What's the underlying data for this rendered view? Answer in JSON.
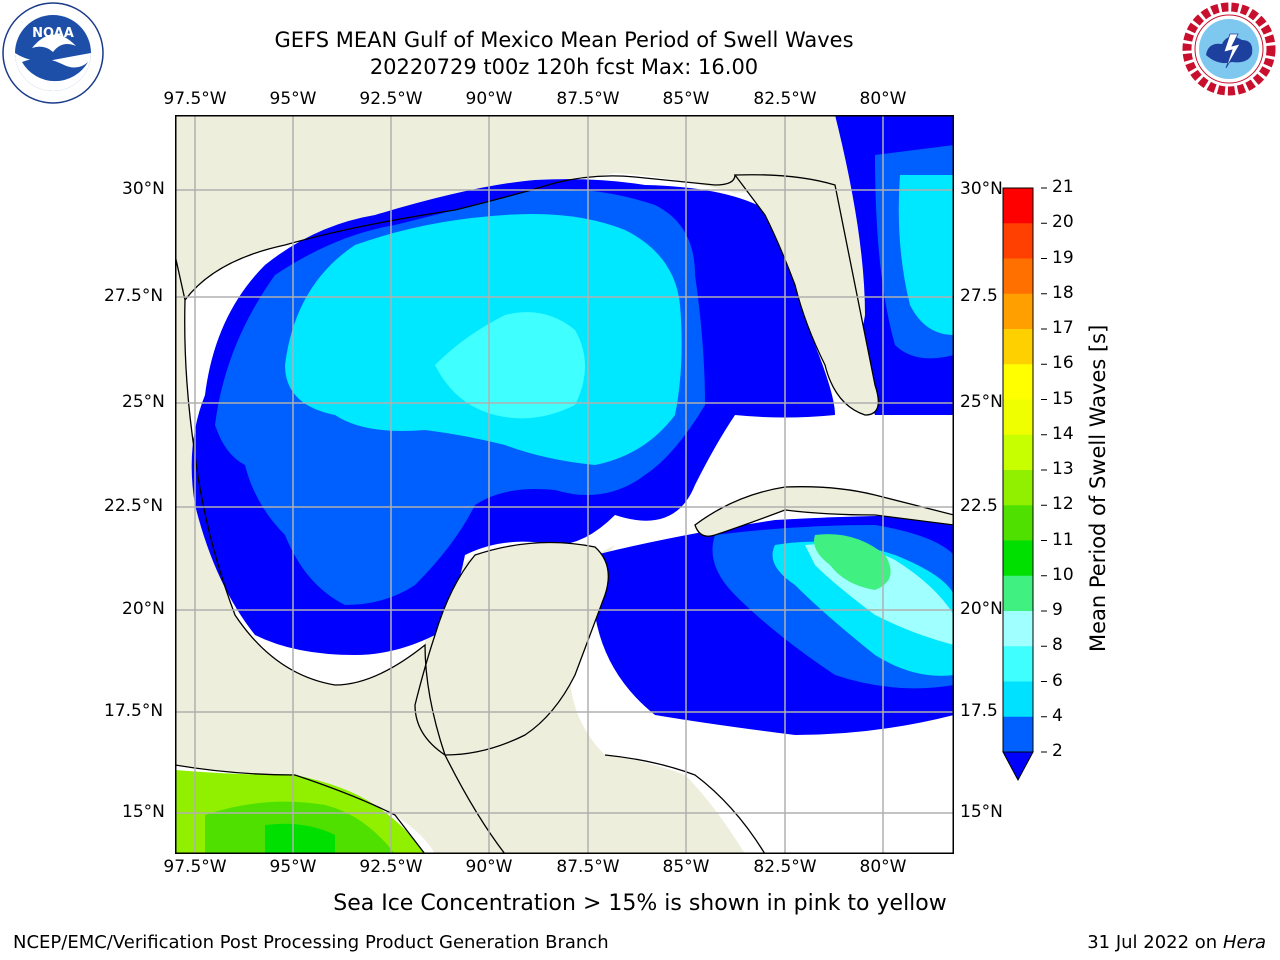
{
  "title": {
    "line1": "GEFS MEAN Gulf of Mexico Mean Period of Swell Waves",
    "line2": "20220729 t00z 120h fcst   Max: 16.00"
  },
  "logos": {
    "left": {
      "name": "noaa-logo",
      "text": "NOAA",
      "ring_text": "NATIONAL OCEANIC AND ATMOSPHERIC ADMINISTRATION · U.S. DEPARTMENT OF COMMERCE"
    },
    "right": {
      "name": "nws-logo",
      "ring_text": "NATIONAL WEATHER SERVICE"
    }
  },
  "map": {
    "lon_labels": [
      "97.5°W",
      "95°W",
      "92.5°W",
      "90°W",
      "87.5°W",
      "85°W",
      "82.5°W",
      "80°W"
    ],
    "lat_labels_left": [
      "30°N",
      "27.5°N",
      "25°N",
      "22.5°N",
      "20°N",
      "17.5°N",
      "15°N"
    ],
    "lat_labels_right": [
      "30°N",
      "27.5",
      "25°N",
      "22.5",
      "20°N",
      "17.5",
      "15°N"
    ],
    "colors": {
      "land": "#eeeedd",
      "grid": "#b0b0b0",
      "coast": "#000000"
    }
  },
  "colorbar": {
    "label": "Mean Period of Swell Waves [s]",
    "ticks": [
      "2",
      "4",
      "6",
      "8",
      "9",
      "10",
      "11",
      "12",
      "13",
      "14",
      "15",
      "16",
      "17",
      "18",
      "19",
      "20",
      "21"
    ],
    "colors": [
      "#0000ff",
      "#0060ff",
      "#00e0ff",
      "#40ffff",
      "#a0ffff",
      "#40f080",
      "#00e000",
      "#50e000",
      "#90f000",
      "#c8ff00",
      "#f0ff00",
      "#ffff00",
      "#ffd000",
      "#ffa000",
      "#ff7000",
      "#ff4000",
      "#ff0000"
    ]
  },
  "caption": "Sea Ice Concentration > 15% is shown in pink to yellow",
  "footer": {
    "left": "NCEP/EMC/Verification Post Processing Product Generation Branch",
    "right_date": "31 Jul 2022 on ",
    "right_host": "Hera"
  }
}
